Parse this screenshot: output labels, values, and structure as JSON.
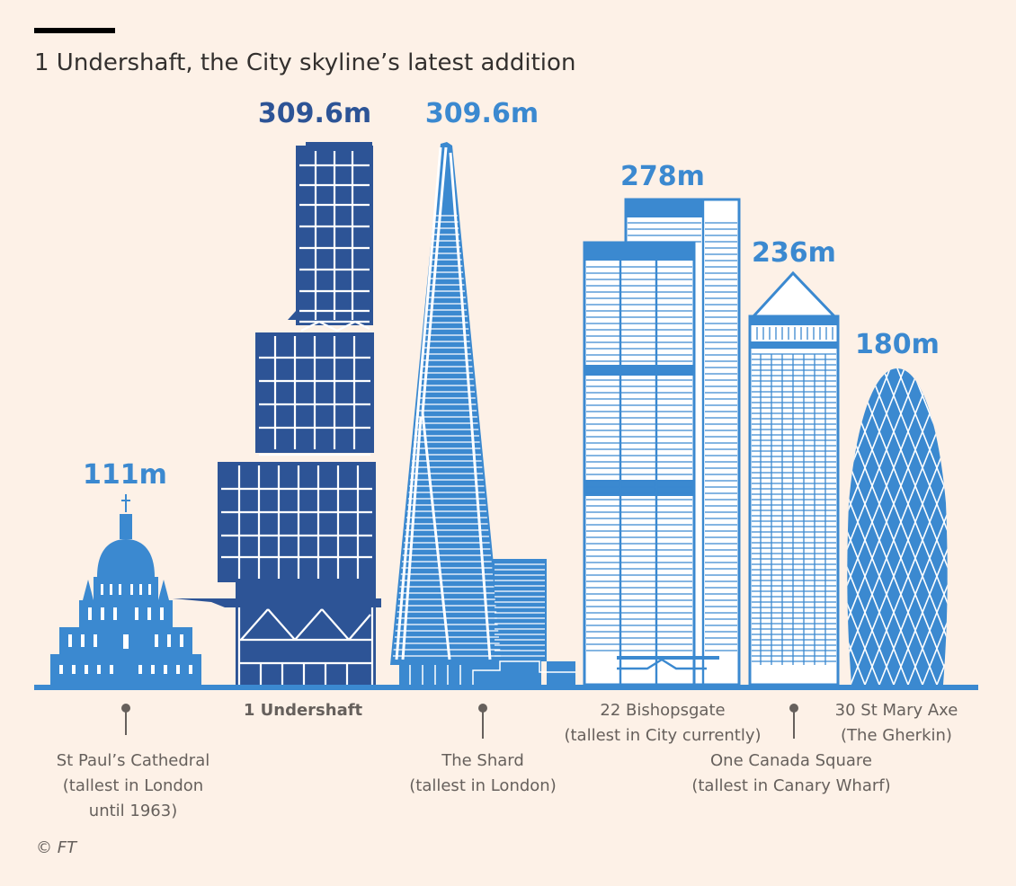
{
  "header": {
    "title": "1 Undershaft, the City skyline’s latest addition"
  },
  "colors": {
    "background": "#fdf1e7",
    "undershaft": "#2d5496",
    "building": "#3b89d0",
    "light": "#ffffff",
    "text": "#33302e",
    "muted": "#66605c",
    "rule": "#000000"
  },
  "buildings": [
    {
      "key": "stpauls",
      "height_label": "111m",
      "height_m": 111,
      "name_lines": [
        "St Paul’s Cathedral",
        "(tallest in London",
        "until 1963)"
      ]
    },
    {
      "key": "undershaft",
      "height_label": "309.6m",
      "height_m": 309.6,
      "name_lines": [
        "1 Undershaft"
      ]
    },
    {
      "key": "shard",
      "height_label": "309.6m",
      "height_m": 309.6,
      "name_lines": [
        "The Shard",
        "(tallest in London)"
      ]
    },
    {
      "key": "bishopsgate",
      "height_label": "278m",
      "height_m": 278,
      "name_lines": [
        "22 Bishopsgate",
        "(tallest in City currently)"
      ]
    },
    {
      "key": "canada",
      "height_label": "236m",
      "height_m": 236,
      "name_lines": [
        "One Canada Square",
        "(tallest in Canary Wharf)"
      ]
    },
    {
      "key": "gherkin",
      "height_label": "180m",
      "height_m": 180,
      "name_lines": [
        "30 St Mary Axe",
        "(The Gherkin)"
      ]
    }
  ],
  "footer": {
    "credit": "© FT"
  }
}
